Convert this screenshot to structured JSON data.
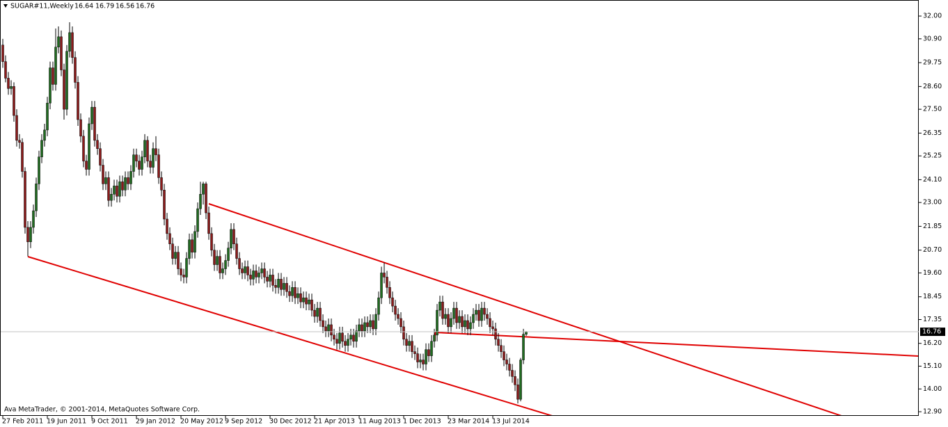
{
  "chart_data": {
    "type": "candlestick",
    "title": "SUGAR#11,Weekly",
    "watermark": "Ava MetaTrader, © 2001-2014, MetaQuotes Software Corp.",
    "up_color": "#1f6b1f",
    "down_color": "#8b1a1a",
    "wick_color": "#000000",
    "ylim": [
      12.7,
      32.64
    ],
    "yticks": [
      {
        "value": 32,
        "label": "32.00"
      },
      {
        "value": 30.9,
        "label": "30.90"
      },
      {
        "value": 29.75,
        "label": "29.75"
      },
      {
        "value": 28.6,
        "label": "28.60"
      },
      {
        "value": 27.5,
        "label": "27.50"
      },
      {
        "value": 26.35,
        "label": "26.35"
      },
      {
        "value": 25.25,
        "label": "25.25"
      },
      {
        "value": 24.1,
        "label": "24.10"
      },
      {
        "value": 23,
        "label": "23.00"
      },
      {
        "value": 21.85,
        "label": "21.85"
      },
      {
        "value": 20.7,
        "label": "20.70"
      },
      {
        "value": 19.6,
        "label": "19.60"
      },
      {
        "value": 18.45,
        "label": "18.45"
      },
      {
        "value": 17.35,
        "label": "17.35"
      },
      {
        "value": 16.2,
        "label": "16.20"
      },
      {
        "value": 15.1,
        "label": "15.10"
      },
      {
        "value": 14,
        "label": "14.00"
      },
      {
        "value": 12.9,
        "label": "12.90"
      }
    ],
    "categories": [
      "27 Feb 2011",
      null,
      null,
      null,
      null,
      null,
      null,
      null,
      null,
      null,
      null,
      null,
      null,
      null,
      null,
      null,
      "19 Jun 2011",
      null,
      null,
      null,
      null,
      null,
      null,
      null,
      null,
      null,
      null,
      null,
      null,
      null,
      null,
      null,
      "9 Oct 2011",
      null,
      null,
      null,
      null,
      null,
      null,
      null,
      null,
      null,
      null,
      null,
      null,
      null,
      null,
      null,
      "29 Jan 2012",
      null,
      null,
      null,
      null,
      null,
      null,
      null,
      null,
      null,
      null,
      null,
      null,
      null,
      null,
      null,
      "20 May 2012",
      null,
      null,
      null,
      null,
      null,
      null,
      null,
      null,
      null,
      null,
      null,
      null,
      null,
      null,
      null,
      "9 Sep 2012",
      null,
      null,
      null,
      null,
      null,
      null,
      null,
      null,
      null,
      null,
      null,
      null,
      null,
      null,
      null,
      "30 Dec 2012",
      null,
      null,
      null,
      null,
      null,
      null,
      null,
      null,
      null,
      null,
      null,
      null,
      null,
      null,
      null,
      "21 Apr 2013",
      null,
      null,
      null,
      null,
      null,
      null,
      null,
      null,
      null,
      null,
      null,
      null,
      null,
      null,
      null,
      "11 Aug 2013",
      null,
      null,
      null,
      null,
      null,
      null,
      null,
      null,
      null,
      null,
      null,
      null,
      null,
      null,
      null,
      "1 Dec 2013",
      null,
      null,
      null,
      null,
      null,
      null,
      null,
      null,
      null,
      null,
      null,
      null,
      null,
      null,
      null,
      "23 Mar 2014",
      null,
      null,
      null,
      null,
      null,
      null,
      null,
      null,
      null,
      null,
      null,
      null,
      null,
      null,
      null,
      "13 Jul 2014",
      null,
      null,
      null,
      null,
      null,
      null,
      null,
      null,
      null,
      null,
      null,
      null
    ],
    "ohlc": [
      [
        30.6,
        30.9,
        29.5,
        29.8
      ],
      [
        29.8,
        30.1,
        28.8,
        29.0
      ],
      [
        29.0,
        29.3,
        28.2,
        28.5
      ],
      [
        28.5,
        28.9,
        28.2,
        28.6
      ],
      [
        28.6,
        28.8,
        26.9,
        27.2
      ],
      [
        27.2,
        27.5,
        25.7,
        26.0
      ],
      [
        26.0,
        26.3,
        25.6,
        25.9
      ],
      [
        25.9,
        26.1,
        24.2,
        24.5
      ],
      [
        24.5,
        24.7,
        21.5,
        21.8
      ],
      [
        21.8,
        22.1,
        20.4,
        21.1
      ],
      [
        21.1,
        22.1,
        20.8,
        21.8
      ],
      [
        21.8,
        22.9,
        21.5,
        22.6
      ],
      [
        22.6,
        24.2,
        22.3,
        23.9
      ],
      [
        23.9,
        25.5,
        23.6,
        25.2
      ],
      [
        25.2,
        26.3,
        24.9,
        26.0
      ],
      [
        26.0,
        26.8,
        25.7,
        26.5
      ],
      [
        26.5,
        28.1,
        26.2,
        27.8
      ],
      [
        27.8,
        29.8,
        27.5,
        29.5
      ],
      [
        29.5,
        29.8,
        28.4,
        28.7
      ],
      [
        28.7,
        31.4,
        28.4,
        30.5
      ],
      [
        30.5,
        31.5,
        30.2,
        31.0
      ],
      [
        31.0,
        31.3,
        29.1,
        29.4
      ],
      [
        29.4,
        29.7,
        27.0,
        27.5
      ],
      [
        27.5,
        30.6,
        27.2,
        30.3
      ],
      [
        30.3,
        31.7,
        30.0,
        31.2
      ],
      [
        31.2,
        31.5,
        29.7,
        30.0
      ],
      [
        30.0,
        30.3,
        28.5,
        28.8
      ],
      [
        28.8,
        29.1,
        26.7,
        27.0
      ],
      [
        27.0,
        27.3,
        25.9,
        26.2
      ],
      [
        26.2,
        26.5,
        24.7,
        25.0
      ],
      [
        25.0,
        25.3,
        24.3,
        24.6
      ],
      [
        24.6,
        27.1,
        24.3,
        26.8
      ],
      [
        26.8,
        27.9,
        26.5,
        27.6
      ],
      [
        27.6,
        27.9,
        25.7,
        26.0
      ],
      [
        26.0,
        26.3,
        25.3,
        25.6
      ],
      [
        25.6,
        25.9,
        24.5,
        24.8
      ],
      [
        24.8,
        25.1,
        23.6,
        23.9
      ],
      [
        23.9,
        24.5,
        23.6,
        24.2
      ],
      [
        24.2,
        24.5,
        22.8,
        23.1
      ],
      [
        23.1,
        23.7,
        22.8,
        23.4
      ],
      [
        23.4,
        24.1,
        23.1,
        23.8
      ],
      [
        23.8,
        24.1,
        23.0,
        23.3
      ],
      [
        23.3,
        24.3,
        23.0,
        24.0
      ],
      [
        24.0,
        24.3,
        23.3,
        23.6
      ],
      [
        23.6,
        24.5,
        23.3,
        24.2
      ],
      [
        24.2,
        24.5,
        23.6,
        23.9
      ],
      [
        23.9,
        24.8,
        23.6,
        24.5
      ],
      [
        24.5,
        25.6,
        24.2,
        25.3
      ],
      [
        25.3,
        25.6,
        24.7,
        25.0
      ],
      [
        25.0,
        25.3,
        24.3,
        24.6
      ],
      [
        24.6,
        25.5,
        24.3,
        25.2
      ],
      [
        25.2,
        26.3,
        24.9,
        26.0
      ],
      [
        26.0,
        26.2,
        24.7,
        25.0
      ],
      [
        25.0,
        25.3,
        24.4,
        24.7
      ],
      [
        24.7,
        25.9,
        24.4,
        25.6
      ],
      [
        25.6,
        26.2,
        25.0,
        25.3
      ],
      [
        25.3,
        25.6,
        23.9,
        24.2
      ],
      [
        24.2,
        24.5,
        23.3,
        23.6
      ],
      [
        23.6,
        23.9,
        21.9,
        22.2
      ],
      [
        22.2,
        22.5,
        21.2,
        21.5
      ],
      [
        21.5,
        21.8,
        20.7,
        21.0
      ],
      [
        21.0,
        21.3,
        20.0,
        20.3
      ],
      [
        20.3,
        20.9,
        20.0,
        20.6
      ],
      [
        20.6,
        20.9,
        19.5,
        19.8
      ],
      [
        19.8,
        20.1,
        19.2,
        19.5
      ],
      [
        19.5,
        19.8,
        19.1,
        19.4
      ],
      [
        19.4,
        20.6,
        19.1,
        20.3
      ],
      [
        20.3,
        21.5,
        20.0,
        21.2
      ],
      [
        21.2,
        21.5,
        20.3,
        20.6
      ],
      [
        20.6,
        21.9,
        20.3,
        21.6
      ],
      [
        21.6,
        23.0,
        21.3,
        22.7
      ],
      [
        22.7,
        24.0,
        22.4,
        23.4
      ],
      [
        23.4,
        24.0,
        22.9,
        23.9
      ],
      [
        23.9,
        24.0,
        22.2,
        22.5
      ],
      [
        22.5,
        22.8,
        21.2,
        21.5
      ],
      [
        21.5,
        21.8,
        20.4,
        20.7
      ],
      [
        20.7,
        21.0,
        19.7,
        20.0
      ],
      [
        20.0,
        20.7,
        19.7,
        20.4
      ],
      [
        20.4,
        20.7,
        19.3,
        19.6
      ],
      [
        19.6,
        20.1,
        19.3,
        19.8
      ],
      [
        19.8,
        20.5,
        19.5,
        20.2
      ],
      [
        20.2,
        21.1,
        19.9,
        20.8
      ],
      [
        20.8,
        22.0,
        20.5,
        21.7
      ],
      [
        21.7,
        22.0,
        20.7,
        21.0
      ],
      [
        21.0,
        21.3,
        20.0,
        20.3
      ],
      [
        20.3,
        20.6,
        19.5,
        19.8
      ],
      [
        19.8,
        20.1,
        19.3,
        19.6
      ],
      [
        19.6,
        20.2,
        19.3,
        19.9
      ],
      [
        19.9,
        20.2,
        19.2,
        19.5
      ],
      [
        19.5,
        19.8,
        19.0,
        19.3
      ],
      [
        19.3,
        20.0,
        19.0,
        19.7
      ],
      [
        19.7,
        20.0,
        19.1,
        19.4
      ],
      [
        19.4,
        19.9,
        19.1,
        19.6
      ],
      [
        19.6,
        20.1,
        19.3,
        19.8
      ],
      [
        19.8,
        20.1,
        19.1,
        19.4
      ],
      [
        19.4,
        19.7,
        18.9,
        19.2
      ],
      [
        19.2,
        19.8,
        18.9,
        19.5
      ],
      [
        19.5,
        19.8,
        18.7,
        19.0
      ],
      [
        19.0,
        19.3,
        18.6,
        18.9
      ],
      [
        18.9,
        19.6,
        18.6,
        19.3
      ],
      [
        19.3,
        19.6,
        18.5,
        18.8
      ],
      [
        18.8,
        19.4,
        18.5,
        19.1
      ],
      [
        19.1,
        19.4,
        18.4,
        18.7
      ],
      [
        18.7,
        19.0,
        18.2,
        18.5
      ],
      [
        18.5,
        19.2,
        18.2,
        18.9
      ],
      [
        18.9,
        19.2,
        18.1,
        18.4
      ],
      [
        18.4,
        18.9,
        18.1,
        18.6
      ],
      [
        18.6,
        18.9,
        17.9,
        18.2
      ],
      [
        18.2,
        18.7,
        17.9,
        18.4
      ],
      [
        18.4,
        18.7,
        17.8,
        18.1
      ],
      [
        18.1,
        18.6,
        17.8,
        18.3
      ],
      [
        18.3,
        18.6,
        17.5,
        17.8
      ],
      [
        17.8,
        18.1,
        17.2,
        17.5
      ],
      [
        17.5,
        18.2,
        17.2,
        17.9
      ],
      [
        17.9,
        18.2,
        17.0,
        17.3
      ],
      [
        17.3,
        17.6,
        16.7,
        17.0
      ],
      [
        17.0,
        17.3,
        16.5,
        16.8
      ],
      [
        16.8,
        17.4,
        16.5,
        17.1
      ],
      [
        17.1,
        17.4,
        16.3,
        16.6
      ],
      [
        16.6,
        16.9,
        16.1,
        16.4
      ],
      [
        16.4,
        16.7,
        15.9,
        16.2
      ],
      [
        16.2,
        17.0,
        15.9,
        16.7
      ],
      [
        16.7,
        17.0,
        16.0,
        16.3
      ],
      [
        16.3,
        16.6,
        15.8,
        16.1
      ],
      [
        16.1,
        16.7,
        15.8,
        16.4
      ],
      [
        16.4,
        16.9,
        16.1,
        16.6
      ],
      [
        16.6,
        16.9,
        16.0,
        16.3
      ],
      [
        16.3,
        17.1,
        16.0,
        16.8
      ],
      [
        16.8,
        17.4,
        16.5,
        17.1
      ],
      [
        17.1,
        17.4,
        16.5,
        16.8
      ],
      [
        16.8,
        17.5,
        16.5,
        17.2
      ],
      [
        17.2,
        17.5,
        16.7,
        17.0
      ],
      [
        17.0,
        17.6,
        16.7,
        17.3
      ],
      [
        17.3,
        17.6,
        16.6,
        16.9
      ],
      [
        16.9,
        17.9,
        16.6,
        17.6
      ],
      [
        17.6,
        18.7,
        17.3,
        18.4
      ],
      [
        18.4,
        19.9,
        18.1,
        19.6
      ],
      [
        19.6,
        20.1,
        19.1,
        19.4
      ],
      [
        19.4,
        19.7,
        18.6,
        18.9
      ],
      [
        18.9,
        19.2,
        18.1,
        18.4
      ],
      [
        18.4,
        18.7,
        17.7,
        18.0
      ],
      [
        18.0,
        18.3,
        17.3,
        17.6
      ],
      [
        17.6,
        17.9,
        17.1,
        17.4
      ],
      [
        17.4,
        17.7,
        16.7,
        17.0
      ],
      [
        17.0,
        17.3,
        16.1,
        16.4
      ],
      [
        16.4,
        16.7,
        15.8,
        16.1
      ],
      [
        16.1,
        16.6,
        15.8,
        16.3
      ],
      [
        16.3,
        16.6,
        15.5,
        15.8
      ],
      [
        15.8,
        16.1,
        15.4,
        15.7
      ],
      [
        15.7,
        16.0,
        15.0,
        15.3
      ],
      [
        15.3,
        15.7,
        15.0,
        15.4
      ],
      [
        15.4,
        15.7,
        14.9,
        15.2
      ],
      [
        15.2,
        16.2,
        14.9,
        15.9
      ],
      [
        15.9,
        16.2,
        15.3,
        15.6
      ],
      [
        15.6,
        16.6,
        15.3,
        16.3
      ],
      [
        16.3,
        16.9,
        16.0,
        16.6
      ],
      [
        16.6,
        18.1,
        16.3,
        17.8
      ],
      [
        17.8,
        18.5,
        17.5,
        18.2
      ],
      [
        18.2,
        18.5,
        17.1,
        17.4
      ],
      [
        17.4,
        17.9,
        17.1,
        17.6
      ],
      [
        17.6,
        17.9,
        16.7,
        17.0
      ],
      [
        17.0,
        17.7,
        16.7,
        17.4
      ],
      [
        17.4,
        18.2,
        17.1,
        17.9
      ],
      [
        17.9,
        18.2,
        16.9,
        17.2
      ],
      [
        17.2,
        17.8,
        16.9,
        17.5
      ],
      [
        17.5,
        17.8,
        16.7,
        17.0
      ],
      [
        17.0,
        17.6,
        16.7,
        17.3
      ],
      [
        17.3,
        17.6,
        16.6,
        16.9
      ],
      [
        16.9,
        17.5,
        16.6,
        17.2
      ],
      [
        17.2,
        17.9,
        16.9,
        17.6
      ],
      [
        17.6,
        18.1,
        17.3,
        17.8
      ],
      [
        17.8,
        18.1,
        17.0,
        17.3
      ],
      [
        17.3,
        18.2,
        17.0,
        17.9
      ],
      [
        17.9,
        18.2,
        17.3,
        17.6
      ],
      [
        17.6,
        17.9,
        17.1,
        17.4
      ],
      [
        17.4,
        17.7,
        16.7,
        17.0
      ],
      [
        17.0,
        17.3,
        16.6,
        16.9
      ],
      [
        16.9,
        17.2,
        16.1,
        16.4
      ],
      [
        16.4,
        16.7,
        15.8,
        16.1
      ],
      [
        16.1,
        16.4,
        15.5,
        15.8
      ],
      [
        15.8,
        16.1,
        15.1,
        15.4
      ],
      [
        15.4,
        15.7,
        14.9,
        15.2
      ],
      [
        15.2,
        15.5,
        14.6,
        14.9
      ],
      [
        14.9,
        15.2,
        14.3,
        14.6
      ],
      [
        14.6,
        14.9,
        13.9,
        14.2
      ],
      [
        14.2,
        14.5,
        13.3,
        13.5
      ],
      [
        13.5,
        15.5,
        13.4,
        15.4
      ],
      [
        15.4,
        16.9,
        15.2,
        16.64
      ],
      [
        16.64,
        16.79,
        16.56,
        16.76
      ]
    ]
  }
}
